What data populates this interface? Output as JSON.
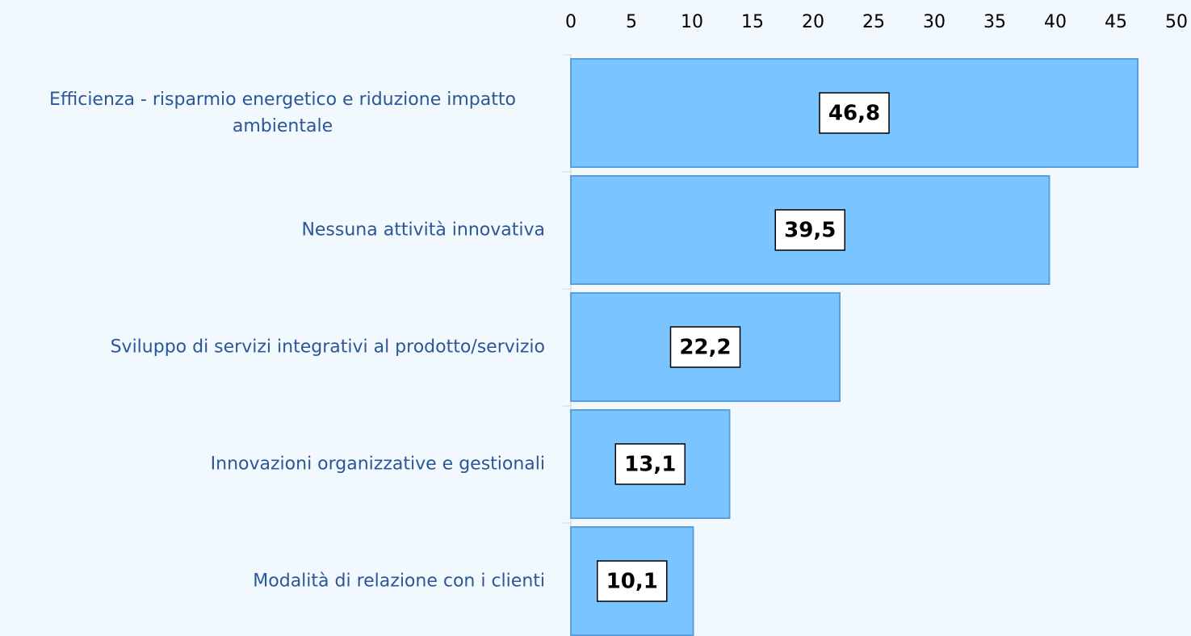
{
  "chart_data": {
    "type": "bar",
    "orientation": "horizontal",
    "categories": [
      "Efficienza - risparmio energetico e riduzione impatto ambientale",
      "Nessuna attività innovativa",
      "Sviluppo di servizi integrativi al prodotto/servizio",
      "Innovazioni organizzative e gestionali",
      "Modalità di relazione con i clienti"
    ],
    "values": [
      46.8,
      39.5,
      22.2,
      13.1,
      10.1
    ],
    "value_labels": [
      "46,8",
      "39,5",
      "22,2",
      "13,1",
      "10,1"
    ],
    "color": "#7ac5ff",
    "xlim": [
      0,
      50
    ],
    "xticks": [
      0,
      5,
      10,
      15,
      20,
      25,
      30,
      35,
      40,
      45,
      50
    ]
  }
}
